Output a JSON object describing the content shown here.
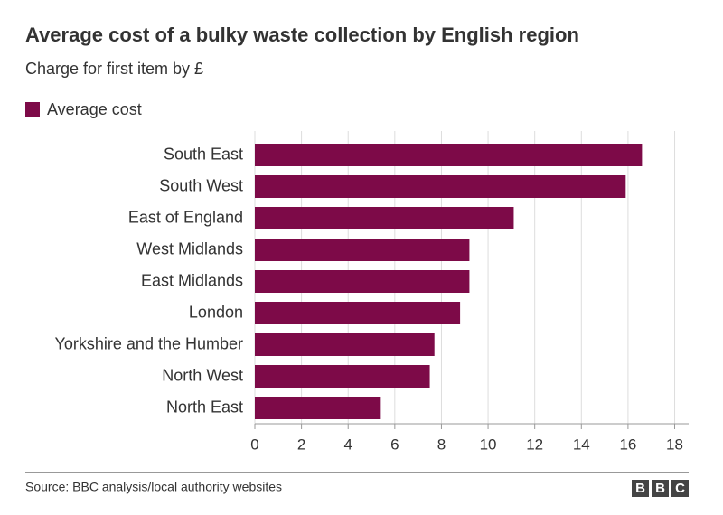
{
  "chart_data": {
    "type": "bar",
    "orientation": "horizontal",
    "title": "Average cost of a bulky waste collection by English region",
    "subtitle": "Charge for first item by £",
    "categories": [
      "South East",
      "South West",
      "East of England",
      "West Midlands",
      "East Midlands",
      "London",
      "Yorkshire and the Humber",
      "North West",
      "North East"
    ],
    "series": [
      {
        "name": "Average cost",
        "color": "#7d0a48",
        "values": [
          16.6,
          15.9,
          11.1,
          9.2,
          9.2,
          8.8,
          7.7,
          7.5,
          5.4
        ]
      }
    ],
    "xlim": [
      0,
      18.6
    ],
    "xticks": [
      0,
      2,
      4,
      6,
      8,
      10,
      12,
      14,
      16,
      18
    ],
    "grid": true,
    "legend": "top-left",
    "source": "Source: BBC analysis/local authority websites",
    "logo": [
      "B",
      "B",
      "C"
    ]
  }
}
